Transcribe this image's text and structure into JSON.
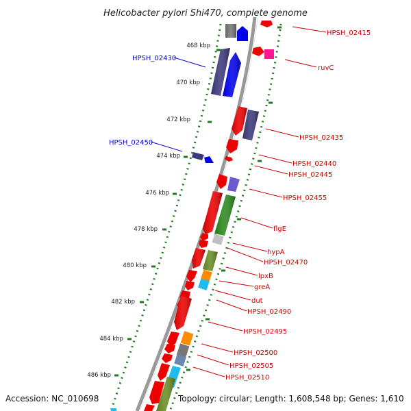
{
  "title": "Helicobacter pylori Shi470, complete genome",
  "footer": {
    "accession": "Accession: NC_010698",
    "summary": "Topology: circular; Length: 1,608,548 bp; Genes: 1,610"
  },
  "colors": {
    "red": "#ee0000",
    "blue": "#0000ee",
    "navy": "#3d3a7c",
    "green": "#2e8b1e",
    "olive": "#6b8e23",
    "orange": "#ff8c00",
    "cyan": "#22bbee",
    "gray": "#777777",
    "lightgray": "#c0c0c0",
    "slate": "#6a5acd",
    "magenta": "#ff1493",
    "backbone": "#999999",
    "tick": "#1f7a1f",
    "label_right": "#cc0000",
    "label_left": "#0000cc"
  },
  "kbp_ticks": [
    "468 kbp",
    "470 kbp",
    "472 kbp",
    "474 kbp",
    "476 kbp",
    "478 kbp",
    "480 kbp",
    "482 kbp",
    "484 kbp",
    "486 kbp"
  ],
  "labels_right": [
    "HPSH_02415",
    "ruvC",
    "HPSH_02435",
    "HPSH_02440",
    "HPSH_02445",
    "HPSH_02455",
    "flgE",
    "hypA",
    "HPSH_02470",
    "lpxB",
    "greA",
    "dut",
    "HPSH_02490",
    "HPSH_02495",
    "HPSH_02500",
    "HPSH_02505",
    "HPSH_02510"
  ],
  "labels_left": [
    "HPSH_02430",
    "HPSH_02450"
  ]
}
